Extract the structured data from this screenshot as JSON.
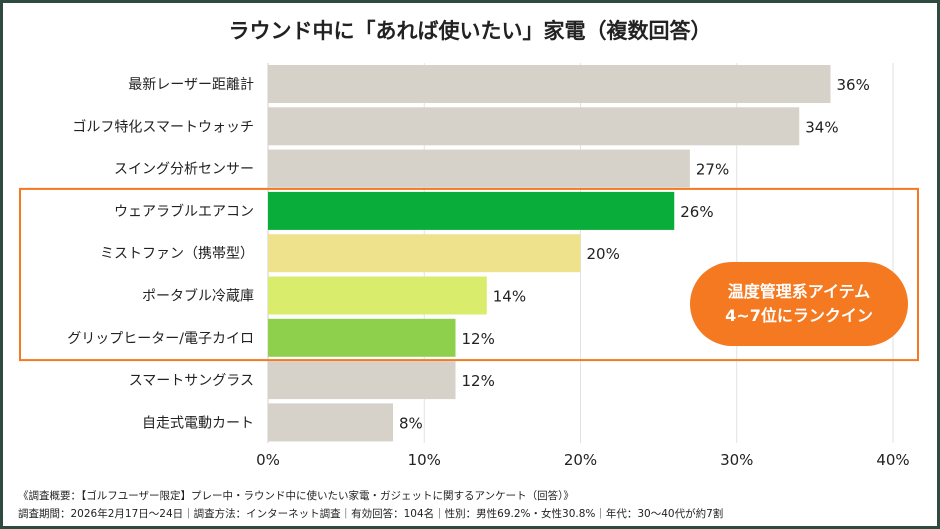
{
  "chart_data": {
    "type": "bar",
    "orientation": "horizontal",
    "title": "ラウンド中に「あれば使いたい」家電（複数回答）",
    "categories": [
      "最新レーザー距離計",
      "ゴルフ特化スマートウォッチ",
      "スイング分析センサー",
      "ウェアラブルエアコン",
      "ミストファン（携帯型）",
      "ポータブル冷蔵庫",
      "グリップヒーター/電子カイロ",
      "スマートサングラス",
      "自走式電動カート"
    ],
    "values": [
      36,
      34,
      27,
      26,
      20,
      14,
      12,
      12,
      8
    ],
    "value_labels": [
      "36%",
      "34%",
      "27%",
      "26%",
      "20%",
      "14%",
      "12%",
      "12%",
      "8%"
    ],
    "colors": [
      "#d6d1c9",
      "#d6d1c9",
      "#d6d1c9",
      "#09ad39",
      "#efe28c",
      "#d9ec6c",
      "#8ed04b",
      "#d6d1c9",
      "#d6d1c9"
    ],
    "xlim": [
      0,
      40
    ],
    "xticks": [
      "0%",
      "10%",
      "20%",
      "30%",
      "40%"
    ],
    "grid": true,
    "highlight": {
      "range": "4-7",
      "color": "#f47920",
      "callout": [
        "温度管理系アイテム",
        "4~7位にランクイン"
      ]
    }
  },
  "notes": [
    "《調査概要：【ゴルフユーザー限定】プレー中・ラウンド中に使いたい家電・ガジェットに関するアンケート（回答）》",
    "調査期間：2026年2月17日〜24日｜調査方法：インターネット調査｜有効回答：104名｜性別：男性69.2%・女性30.8%｜年代：30〜40代が約7割"
  ],
  "frame_color": "#2f4b3f"
}
